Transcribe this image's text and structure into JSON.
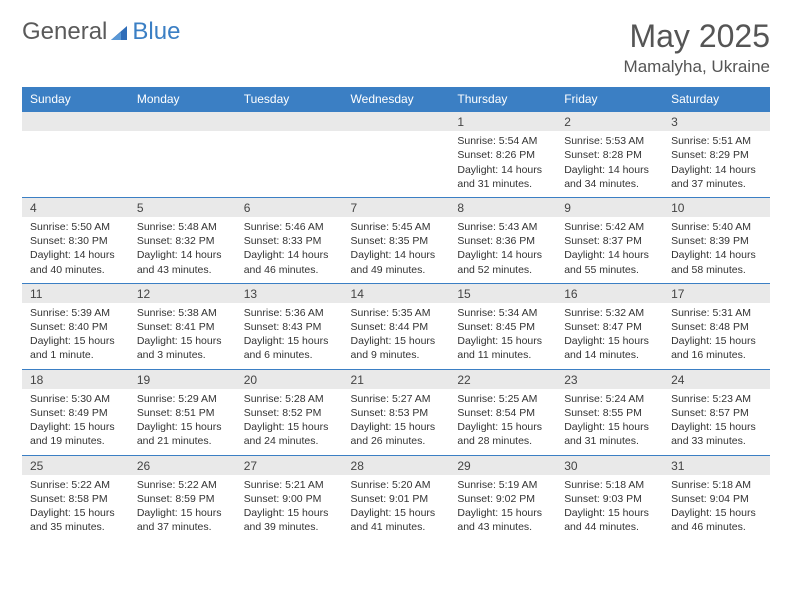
{
  "brand": {
    "part1": "General",
    "part2": "Blue"
  },
  "title": "May 2025",
  "location": "Mamalyha, Ukraine",
  "colors": {
    "header_bg": "#3b7fc4",
    "header_text": "#ffffff",
    "daynum_bg": "#e9e9e9",
    "border": "#3b7fc4",
    "text": "#333333",
    "title_text": "#555555"
  },
  "weekdays": [
    "Sunday",
    "Monday",
    "Tuesday",
    "Wednesday",
    "Thursday",
    "Friday",
    "Saturday"
  ],
  "weeks": [
    [
      null,
      null,
      null,
      null,
      {
        "n": "1",
        "sr": "5:54 AM",
        "ss": "8:26 PM",
        "dl": "14 hours and 31 minutes."
      },
      {
        "n": "2",
        "sr": "5:53 AM",
        "ss": "8:28 PM",
        "dl": "14 hours and 34 minutes."
      },
      {
        "n": "3",
        "sr": "5:51 AM",
        "ss": "8:29 PM",
        "dl": "14 hours and 37 minutes."
      }
    ],
    [
      {
        "n": "4",
        "sr": "5:50 AM",
        "ss": "8:30 PM",
        "dl": "14 hours and 40 minutes."
      },
      {
        "n": "5",
        "sr": "5:48 AM",
        "ss": "8:32 PM",
        "dl": "14 hours and 43 minutes."
      },
      {
        "n": "6",
        "sr": "5:46 AM",
        "ss": "8:33 PM",
        "dl": "14 hours and 46 minutes."
      },
      {
        "n": "7",
        "sr": "5:45 AM",
        "ss": "8:35 PM",
        "dl": "14 hours and 49 minutes."
      },
      {
        "n": "8",
        "sr": "5:43 AM",
        "ss": "8:36 PM",
        "dl": "14 hours and 52 minutes."
      },
      {
        "n": "9",
        "sr": "5:42 AM",
        "ss": "8:37 PM",
        "dl": "14 hours and 55 minutes."
      },
      {
        "n": "10",
        "sr": "5:40 AM",
        "ss": "8:39 PM",
        "dl": "14 hours and 58 minutes."
      }
    ],
    [
      {
        "n": "11",
        "sr": "5:39 AM",
        "ss": "8:40 PM",
        "dl": "15 hours and 1 minute."
      },
      {
        "n": "12",
        "sr": "5:38 AM",
        "ss": "8:41 PM",
        "dl": "15 hours and 3 minutes."
      },
      {
        "n": "13",
        "sr": "5:36 AM",
        "ss": "8:43 PM",
        "dl": "15 hours and 6 minutes."
      },
      {
        "n": "14",
        "sr": "5:35 AM",
        "ss": "8:44 PM",
        "dl": "15 hours and 9 minutes."
      },
      {
        "n": "15",
        "sr": "5:34 AM",
        "ss": "8:45 PM",
        "dl": "15 hours and 11 minutes."
      },
      {
        "n": "16",
        "sr": "5:32 AM",
        "ss": "8:47 PM",
        "dl": "15 hours and 14 minutes."
      },
      {
        "n": "17",
        "sr": "5:31 AM",
        "ss": "8:48 PM",
        "dl": "15 hours and 16 minutes."
      }
    ],
    [
      {
        "n": "18",
        "sr": "5:30 AM",
        "ss": "8:49 PM",
        "dl": "15 hours and 19 minutes."
      },
      {
        "n": "19",
        "sr": "5:29 AM",
        "ss": "8:51 PM",
        "dl": "15 hours and 21 minutes."
      },
      {
        "n": "20",
        "sr": "5:28 AM",
        "ss": "8:52 PM",
        "dl": "15 hours and 24 minutes."
      },
      {
        "n": "21",
        "sr": "5:27 AM",
        "ss": "8:53 PM",
        "dl": "15 hours and 26 minutes."
      },
      {
        "n": "22",
        "sr": "5:25 AM",
        "ss": "8:54 PM",
        "dl": "15 hours and 28 minutes."
      },
      {
        "n": "23",
        "sr": "5:24 AM",
        "ss": "8:55 PM",
        "dl": "15 hours and 31 minutes."
      },
      {
        "n": "24",
        "sr": "5:23 AM",
        "ss": "8:57 PM",
        "dl": "15 hours and 33 minutes."
      }
    ],
    [
      {
        "n": "25",
        "sr": "5:22 AM",
        "ss": "8:58 PM",
        "dl": "15 hours and 35 minutes."
      },
      {
        "n": "26",
        "sr": "5:22 AM",
        "ss": "8:59 PM",
        "dl": "15 hours and 37 minutes."
      },
      {
        "n": "27",
        "sr": "5:21 AM",
        "ss": "9:00 PM",
        "dl": "15 hours and 39 minutes."
      },
      {
        "n": "28",
        "sr": "5:20 AM",
        "ss": "9:01 PM",
        "dl": "15 hours and 41 minutes."
      },
      {
        "n": "29",
        "sr": "5:19 AM",
        "ss": "9:02 PM",
        "dl": "15 hours and 43 minutes."
      },
      {
        "n": "30",
        "sr": "5:18 AM",
        "ss": "9:03 PM",
        "dl": "15 hours and 44 minutes."
      },
      {
        "n": "31",
        "sr": "5:18 AM",
        "ss": "9:04 PM",
        "dl": "15 hours and 46 minutes."
      }
    ]
  ],
  "labels": {
    "sunrise": "Sunrise:",
    "sunset": "Sunset:",
    "daylight": "Daylight:"
  }
}
